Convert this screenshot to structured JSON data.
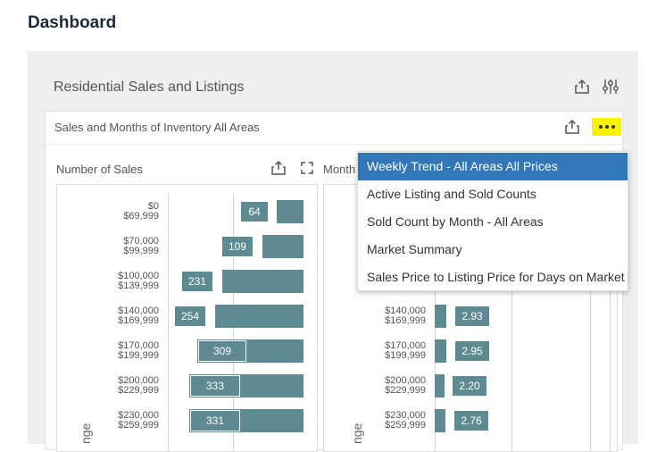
{
  "page": {
    "title": "Dashboard"
  },
  "panel": {
    "title": "Residential Sales and Listings"
  },
  "card": {
    "title": "Sales and Months of Inventory All Areas"
  },
  "left_chart": {
    "title": "Number of Sales",
    "axis_label": "nge",
    "rows": [
      {
        "label_top": "$0",
        "label_bottom": "$69,999",
        "value": "64"
      },
      {
        "label_top": "$70,000",
        "label_bottom": "$99,999",
        "value": "109"
      },
      {
        "label_top": "$100,000",
        "label_bottom": "$139,999",
        "value": "231"
      },
      {
        "label_top": "$140,000",
        "label_bottom": "$169,999",
        "value": "254"
      },
      {
        "label_top": "$170,000",
        "label_bottom": "$199,999",
        "value": "309"
      },
      {
        "label_top": "$200,000",
        "label_bottom": "$229,999",
        "value": "333"
      },
      {
        "label_top": "$230,000",
        "label_bottom": "$259,999",
        "value": "331"
      }
    ]
  },
  "right_chart": {
    "title": "Month",
    "axis_label": "nge",
    "rows": [
      {
        "label_top": "$140,000",
        "label_bottom": "$169,999",
        "value": "2.93"
      },
      {
        "label_top": "$170,000",
        "label_bottom": "$199,999",
        "value": "2.95"
      },
      {
        "label_top": "$200,000",
        "label_bottom": "$229,999",
        "value": "2.20"
      },
      {
        "label_top": "$230,000",
        "label_bottom": "$259,999",
        "value": "2.76"
      }
    ]
  },
  "menu": {
    "items": [
      {
        "label": "Weekly Trend - All Areas All Prices"
      },
      {
        "label": "Active Listing and Sold Counts"
      },
      {
        "label": "Sold Count by Month - All Areas"
      },
      {
        "label": "Market Summary"
      },
      {
        "label": "Sales Price to Listing Price for Days on Market"
      }
    ]
  },
  "icons": {
    "export": "export-icon",
    "filter": "filter-sliders-icon",
    "more": "more-options-icon",
    "expand": "expand-icon"
  },
  "colors": {
    "bar": "#5e8a92",
    "menu_active": "#3278b8",
    "highlight": "#f7f200",
    "panel_bg": "#efefef"
  }
}
